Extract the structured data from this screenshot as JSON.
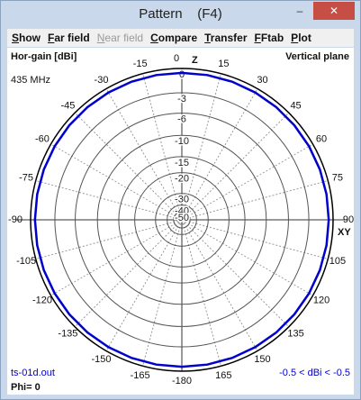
{
  "window": {
    "title": "Pattern    (F4)"
  },
  "menu": [
    "Show",
    "Far field",
    "Near field",
    "Compare",
    "Transfer",
    "FFtab",
    "Plot"
  ],
  "chart_data": {
    "type": "polar",
    "title": "Hor-gain [dBi]",
    "plane": "Vertical plane",
    "frequency": "435 MHz",
    "axis_labels": {
      "z": "Z",
      "xy": "XY"
    },
    "angle_ticks": [
      0,
      15,
      30,
      45,
      60,
      75,
      90,
      105,
      120,
      135,
      150,
      165,
      -180,
      -165,
      -150,
      -135,
      -120,
      -105,
      -90,
      -75,
      -60,
      -45,
      -30,
      -15
    ],
    "rticks": [
      0,
      -3,
      -6,
      -10,
      -15,
      -20,
      -30,
      -40,
      -50
    ],
    "rlim": [
      -50,
      0
    ],
    "series": [
      {
        "color": "#0000cc",
        "x": [
          -180,
          -170,
          -160,
          -150,
          -140,
          -130,
          -120,
          -110,
          -100,
          -90,
          -80,
          -70,
          -60,
          -50,
          -40,
          -30,
          -20,
          -10,
          0,
          10,
          20,
          30,
          40,
          50,
          60,
          70,
          80,
          90,
          100,
          110,
          120,
          130,
          140,
          150,
          160,
          170,
          180
        ],
        "values": [
          -0.5,
          -0.5,
          -0.5,
          -0.5,
          -0.5,
          -0.5,
          -0.5,
          -0.5,
          -0.5,
          -0.5,
          -0.5,
          -0.5,
          -0.5,
          -0.5,
          -0.5,
          -0.5,
          -0.5,
          -0.5,
          -0.5,
          -0.5,
          -0.5,
          -0.5,
          -0.5,
          -0.5,
          -0.5,
          -0.5,
          -0.5,
          -0.5,
          -0.5,
          -0.5,
          -0.5,
          -0.5,
          -0.5,
          -0.5,
          -0.5,
          -0.5,
          -0.5
        ]
      }
    ],
    "file": "ts-01d.out",
    "phi": "Phi= 0",
    "range": "-0.5 < dBi < -0.5"
  }
}
